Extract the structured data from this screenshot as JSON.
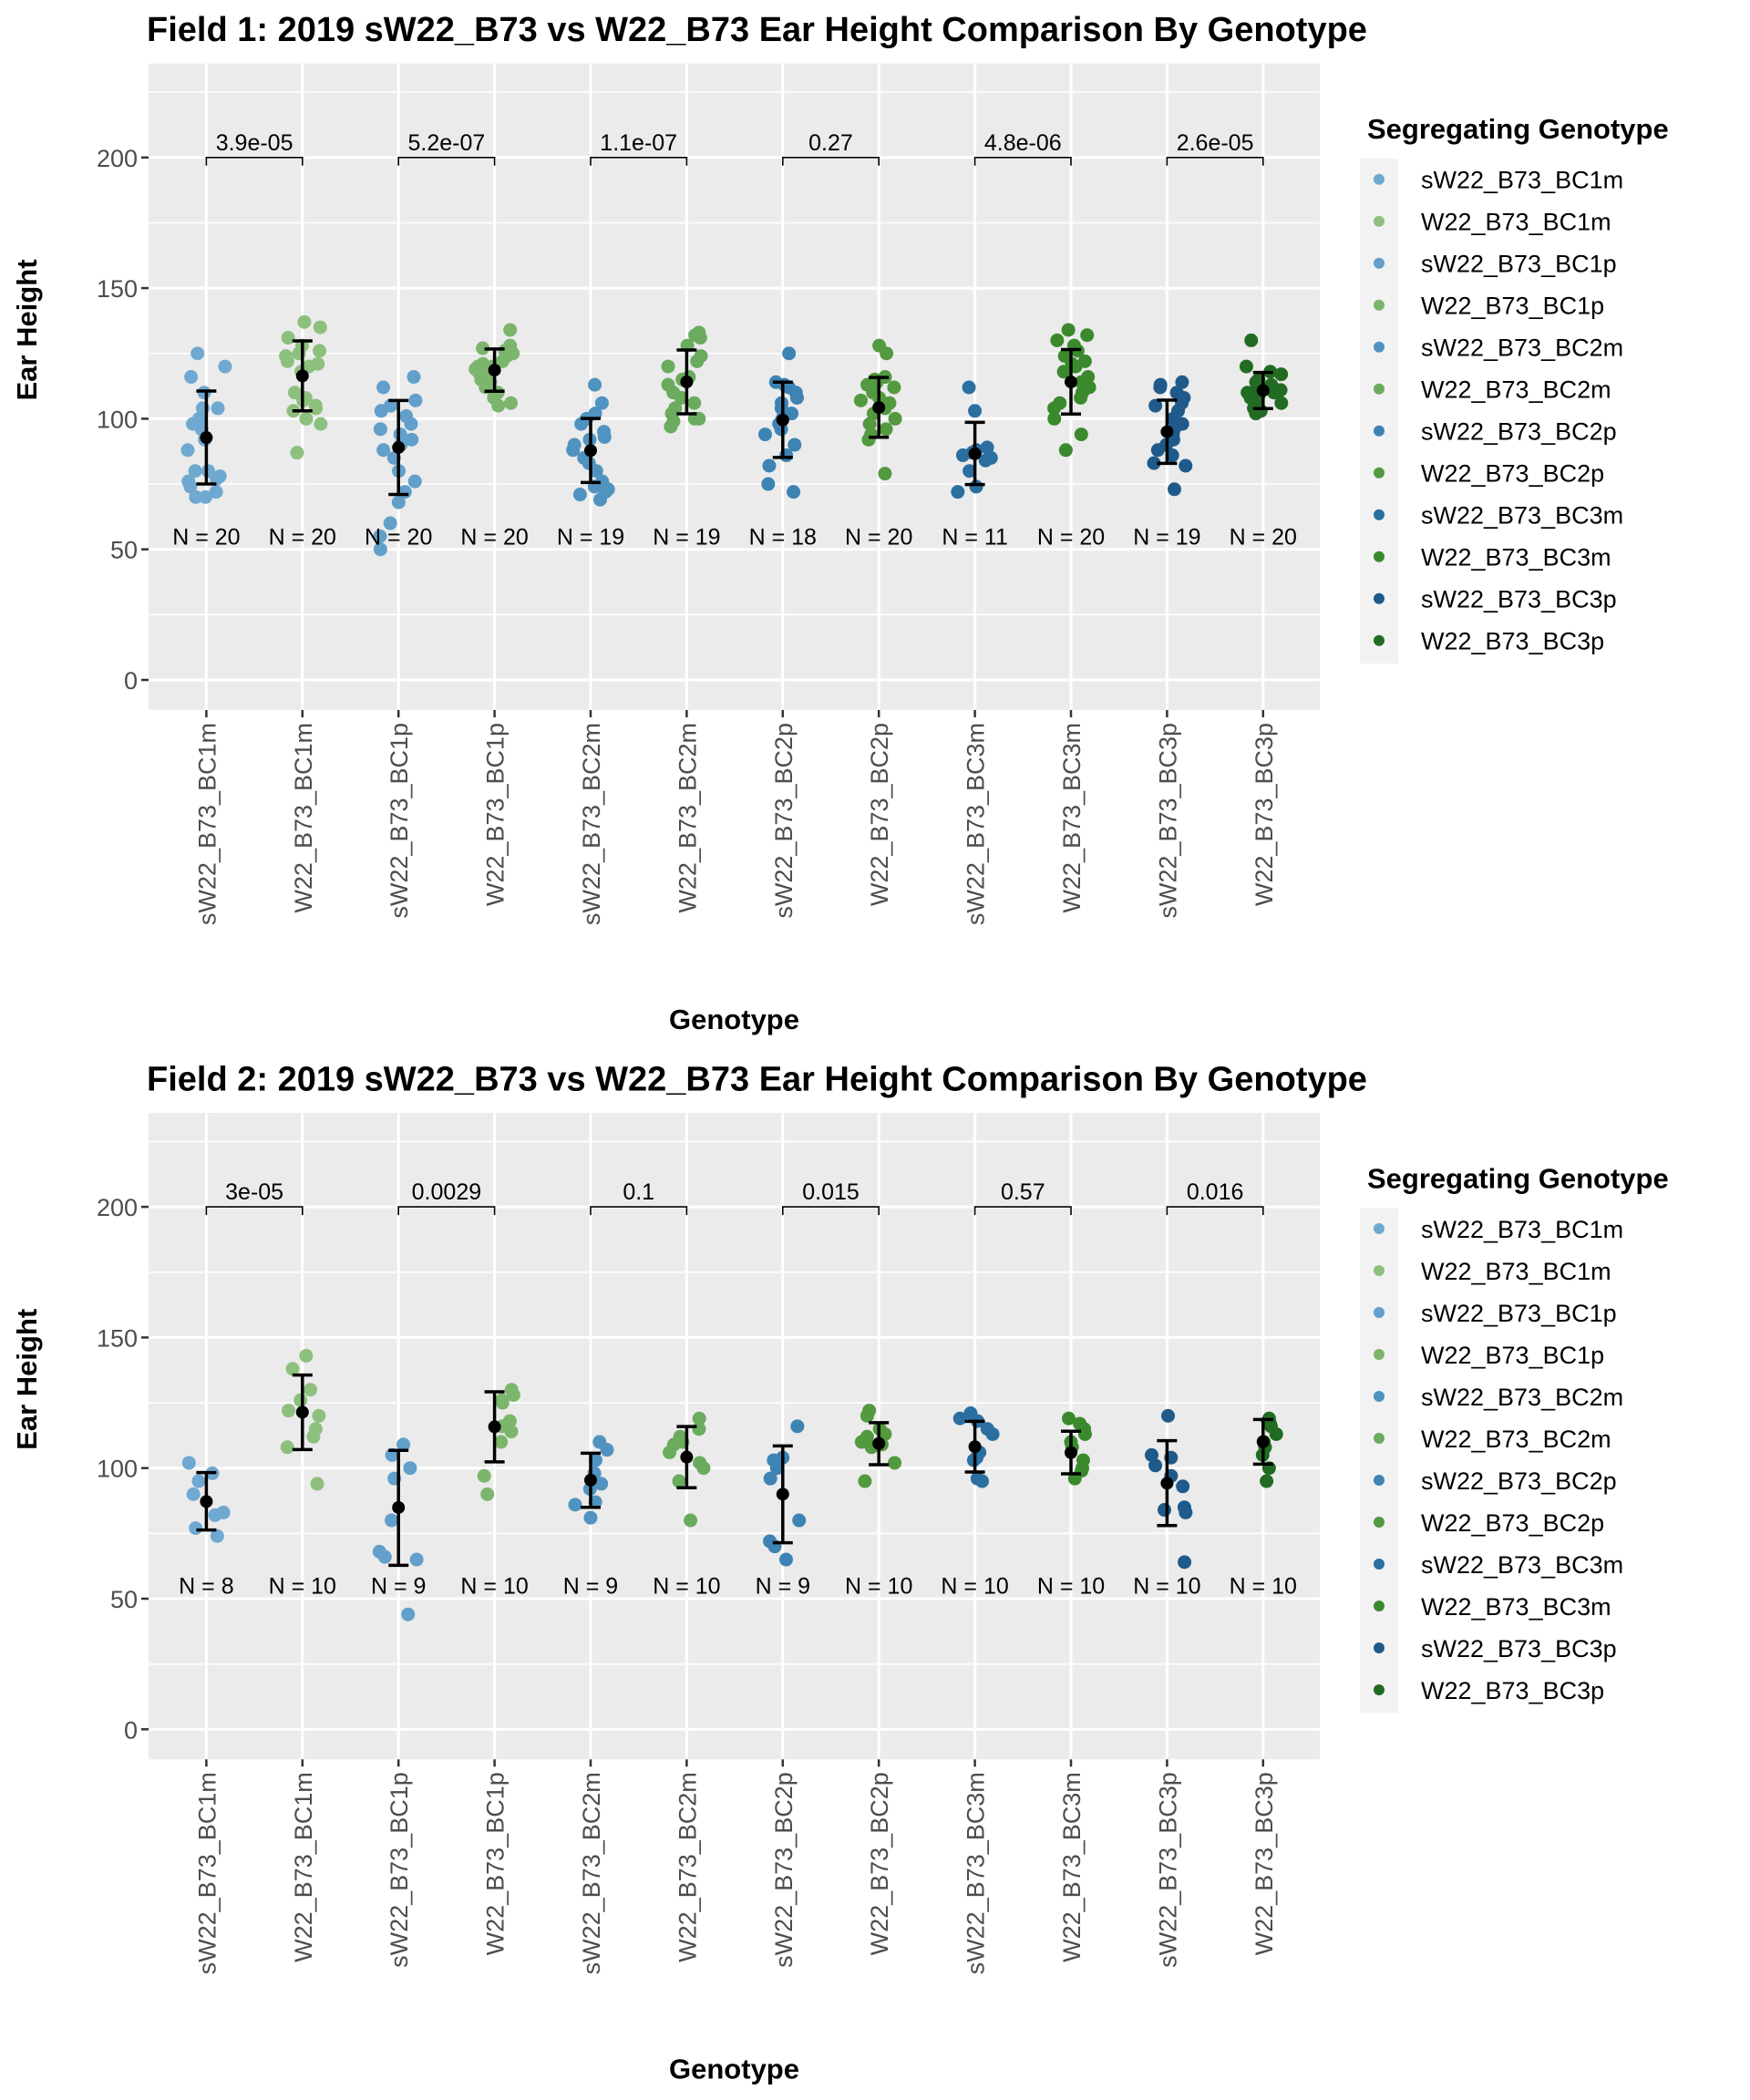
{
  "chart_data": [
    {
      "type": "scatter",
      "subtype": "jittered strip plot with mean ± SD error bars and pairwise p-value brackets",
      "title": "Field 1: 2019 sW22_B73 vs W22_B73 Ear Height Comparison By Genotype",
      "xlabel": "Genotype",
      "ylabel": "Ear Height",
      "ylim": [
        -11.5,
        236
      ],
      "yticks": [
        0,
        50,
        100,
        150,
        200
      ],
      "grid": true,
      "legend_position": "right",
      "categories": [
        "sW22_B73_BC1m",
        "W22_B73_BC1m",
        "sW22_B73_BC1p",
        "W22_B73_BC1p",
        "sW22_B73_BC2m",
        "W22_B73_BC2m",
        "sW22_B73_BC2p",
        "W22_B73_BC2p",
        "sW22_B73_BC3m",
        "W22_B73_BC3m",
        "sW22_B73_BC3p",
        "W22_B73_BC3p"
      ],
      "n_labels": [
        "N = 20",
        "N = 20",
        "N = 20",
        "N = 20",
        "N = 19",
        "N = 19",
        "N = 18",
        "N = 20",
        "N = 11",
        "N = 20",
        "N = 19",
        "N = 20"
      ],
      "n_label_y": 55,
      "means": [
        92.8,
        116.4,
        89.0,
        118.6,
        87.8,
        114.1,
        99.5,
        104.3,
        86.6,
        114.1,
        95.0,
        110.8
      ],
      "error_low": [
        75.0,
        103.0,
        71.0,
        110.5,
        75.6,
        101.9,
        85.2,
        92.9,
        74.8,
        101.8,
        82.9,
        103.9
      ],
      "error_high": [
        110.6,
        129.8,
        107.0,
        126.7,
        100.1,
        126.3,
        114.0,
        115.8,
        98.6,
        126.5,
        107.1,
        117.7
      ],
      "points": [
        [
          125,
          120,
          116,
          110,
          104,
          104,
          100,
          98,
          96,
          92,
          88,
          80,
          80,
          78,
          77,
          76,
          74,
          72,
          70,
          70
        ],
        [
          137,
          135,
          131,
          128,
          126,
          125,
          124,
          122,
          121,
          120,
          118,
          110,
          108,
          107,
          105,
          104,
          103,
          100,
          98,
          87
        ],
        [
          116,
          112,
          107,
          105,
          103,
          101,
          98,
          96,
          94,
          92,
          90,
          88,
          85,
          80,
          76,
          72,
          68,
          60,
          55,
          50
        ],
        [
          134,
          128,
          127,
          126,
          125,
          124,
          122,
          121,
          120,
          120,
          119,
          118,
          116,
          115,
          114,
          112,
          110,
          108,
          106,
          105
        ],
        [
          113,
          106,
          102,
          100,
          98,
          95,
          93,
          92,
          90,
          88,
          85,
          83,
          80,
          76,
          74,
          73,
          72,
          71,
          69
        ],
        [
          133,
          132,
          131,
          128,
          124,
          122,
          120,
          116,
          115,
          113,
          110,
          108,
          106,
          104,
          102,
          100,
          100,
          99,
          97
        ],
        [
          125,
          114,
          113,
          112,
          110,
          108,
          106,
          104,
          102,
          100,
          98,
          96,
          94,
          90,
          86,
          82,
          75,
          72
        ],
        [
          128,
          125,
          116,
          115,
          114,
          113,
          112,
          110,
          108,
          107,
          106,
          105,
          104,
          102,
          100,
          98,
          96,
          94,
          92,
          79
        ],
        [
          112,
          103,
          89,
          88,
          87,
          86,
          85,
          84,
          80,
          74,
          72
        ],
        [
          134,
          132,
          130,
          128,
          126,
          124,
          122,
          121,
          120,
          118,
          116,
          114,
          112,
          110,
          108,
          106,
          104,
          100,
          94,
          88
        ],
        [
          114,
          113,
          112,
          110,
          108,
          106,
          105,
          103,
          100,
          98,
          96,
          94,
          92,
          90,
          88,
          86,
          83,
          82,
          73
        ],
        [
          130,
          120,
          118,
          117,
          115,
          114,
          113,
          112,
          112,
          111,
          110,
          110,
          109,
          108,
          107,
          106,
          105,
          104,
          103,
          102
        ]
      ],
      "comparisons": [
        {
          "from": "sW22_B73_BC1m",
          "to": "W22_B73_BC1m",
          "p_label": "3.9e-05",
          "y": 200
        },
        {
          "from": "sW22_B73_BC1p",
          "to": "W22_B73_BC1p",
          "p_label": "5.2e-07",
          "y": 200
        },
        {
          "from": "sW22_B73_BC2m",
          "to": "W22_B73_BC2m",
          "p_label": "1.1e-07",
          "y": 200
        },
        {
          "from": "sW22_B73_BC2p",
          "to": "W22_B73_BC2p",
          "p_label": "0.27",
          "y": 200
        },
        {
          "from": "sW22_B73_BC3m",
          "to": "W22_B73_BC3m",
          "p_label": "4.8e-06",
          "y": 200
        },
        {
          "from": "sW22_B73_BC3p",
          "to": "W22_B73_BC3p",
          "p_label": "2.6e-05",
          "y": 200
        }
      ],
      "legend_title": "Segregating Genotype"
    },
    {
      "type": "scatter",
      "subtype": "jittered strip plot with mean ± SD error bars and pairwise p-value brackets",
      "title": "Field 2: 2019 sW22_B73 vs W22_B73 Ear Height Comparison By Genotype",
      "xlabel": "Genotype",
      "ylabel": "Ear Height",
      "ylim": [
        -11.5,
        236
      ],
      "yticks": [
        0,
        50,
        100,
        150,
        200
      ],
      "grid": true,
      "legend_position": "right",
      "categories": [
        "sW22_B73_BC1m",
        "W22_B73_BC1m",
        "sW22_B73_BC1p",
        "W22_B73_BC1p",
        "sW22_B73_BC2m",
        "W22_B73_BC2m",
        "sW22_B73_BC2p",
        "W22_B73_BC2p",
        "sW22_B73_BC3m",
        "W22_B73_BC3m",
        "sW22_B73_BC3p",
        "W22_B73_BC3p"
      ],
      "n_labels": [
        "N = 8",
        "N = 10",
        "N = 9",
        "N = 10",
        "N = 9",
        "N = 10",
        "N = 9",
        "N = 10",
        "N = 10",
        "N = 10",
        "N = 10",
        "N = 10"
      ],
      "n_label_y": 55,
      "means": [
        87.2,
        121.4,
        84.9,
        115.8,
        95.4,
        104.2,
        90.0,
        109.4,
        108.2,
        105.9,
        94.2,
        110.1
      ],
      "error_low": [
        76.3,
        107.1,
        62.8,
        102.4,
        85.0,
        92.5,
        71.4,
        101.3,
        98.5,
        97.8,
        78.0,
        101.5
      ],
      "error_high": [
        98.3,
        135.6,
        106.8,
        129.2,
        105.7,
        115.9,
        108.5,
        117.4,
        117.9,
        114.1,
        110.5,
        118.6
      ],
      "points": [
        [
          102,
          98,
          95,
          90,
          83,
          82,
          77,
          74
        ],
        [
          143,
          138,
          130,
          126,
          122,
          120,
          115,
          112,
          108,
          94
        ],
        [
          109,
          105,
          100,
          96,
          80,
          68,
          66,
          65,
          44
        ],
        [
          130,
          128,
          126,
          125,
          118,
          116,
          114,
          110,
          97,
          90
        ],
        [
          110,
          107,
          103,
          98,
          94,
          92,
          87,
          86,
          81
        ],
        [
          119,
          115,
          112,
          110,
          109,
          106,
          102,
          100,
          95,
          80
        ],
        [
          116,
          104,
          103,
          100,
          96,
          80,
          72,
          70,
          65
        ],
        [
          122,
          120,
          115,
          113,
          112,
          110,
          109,
          108,
          102,
          95
        ],
        [
          121,
          119,
          118,
          115,
          113,
          106,
          104,
          103,
          96,
          95
        ],
        [
          119,
          117,
          115,
          113,
          110,
          108,
          103,
          100,
          99,
          96
        ],
        [
          120,
          105,
          104,
          101,
          97,
          93,
          85,
          84,
          83,
          64
        ],
        [
          119,
          118,
          117,
          116,
          113,
          110,
          108,
          105,
          100,
          95
        ]
      ],
      "comparisons": [
        {
          "from": "sW22_B73_BC1m",
          "to": "W22_B73_BC1m",
          "p_label": "3e-05",
          "y": 200
        },
        {
          "from": "sW22_B73_BC1p",
          "to": "W22_B73_BC1p",
          "p_label": "0.0029",
          "y": 200
        },
        {
          "from": "sW22_B73_BC2m",
          "to": "W22_B73_BC2m",
          "p_label": "0.1",
          "y": 200
        },
        {
          "from": "sW22_B73_BC2p",
          "to": "W22_B73_BC2p",
          "p_label": "0.015",
          "y": 200
        },
        {
          "from": "sW22_B73_BC3m",
          "to": "W22_B73_BC3m",
          "p_label": "0.57",
          "y": 200
        },
        {
          "from": "sW22_B73_BC3p",
          "to": "W22_B73_BC3p",
          "p_label": "0.016",
          "y": 200
        }
      ],
      "legend_title": "Segregating Genotype"
    }
  ],
  "legend": {
    "title": "Segregating Genotype",
    "items": [
      {
        "label": "sW22_B73_BC1m",
        "color": "#6fa8d0"
      },
      {
        "label": "W22_B73_BC1m",
        "color": "#8dc07d"
      },
      {
        "label": "sW22_B73_BC1p",
        "color": "#629fca"
      },
      {
        "label": "W22_B73_BC1p",
        "color": "#7cb56c"
      },
      {
        "label": "sW22_B73_BC2m",
        "color": "#5193c0"
      },
      {
        "label": "W22_B73_BC2m",
        "color": "#6aab5e"
      },
      {
        "label": "sW22_B73_BC2p",
        "color": "#3d83b3"
      },
      {
        "label": "W22_B73_BC2p",
        "color": "#53993f"
      },
      {
        "label": "sW22_B73_BC3m",
        "color": "#2b6fa1"
      },
      {
        "label": "W22_B73_BC3m",
        "color": "#3a8a2d"
      },
      {
        "label": "sW22_B73_BC3p",
        "color": "#1f5a8a"
      },
      {
        "label": "W22_B73_BC3p",
        "color": "#226b22"
      }
    ]
  },
  "colors": {
    "panel_background": "#ebebeb",
    "gridline": "#ffffff",
    "legend_key_background": "#f2f2f2",
    "mean_marker": "#000000",
    "tick_label": "#4d4d4d"
  }
}
